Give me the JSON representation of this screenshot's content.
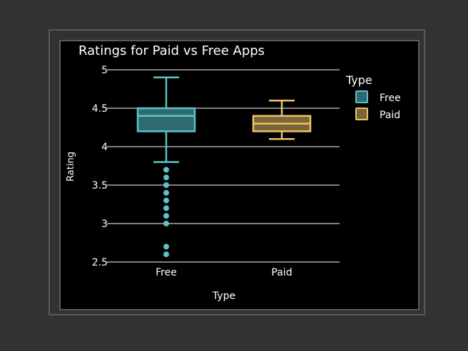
{
  "chart_data": {
    "type": "box",
    "title": "Ratings for Paid vs Free Apps",
    "xlabel": "Type",
    "ylabel": "Rating",
    "categories": [
      "Free",
      "Paid"
    ],
    "ylim": [
      2.5,
      5.0
    ],
    "yticks": [
      "2.5",
      "3",
      "3.5",
      "4",
      "4.5",
      "5"
    ],
    "ytick_values": [
      2.5,
      3.0,
      3.5,
      4.0,
      4.5,
      5.0
    ],
    "grid": true,
    "legend": {
      "title": "Type",
      "position": "top-right",
      "entries": [
        "Free",
        "Paid"
      ]
    },
    "series": [
      {
        "name": "Free",
        "category": "Free",
        "color": "#5bc4c8",
        "fill": "#2f6b6e",
        "min": 3.8,
        "q1": 4.2,
        "median": 4.4,
        "q3": 4.5,
        "max": 4.9,
        "outliers": [
          3.7,
          3.6,
          3.5,
          3.4,
          3.3,
          3.2,
          3.1,
          3.0,
          2.7,
          2.6
        ]
      },
      {
        "name": "Paid",
        "category": "Paid",
        "color": "#f0c36a",
        "fill": "#7a6538",
        "min": 4.1,
        "q1": 4.2,
        "median": 4.3,
        "q3": 4.4,
        "max": 4.6,
        "outliers": []
      }
    ]
  }
}
